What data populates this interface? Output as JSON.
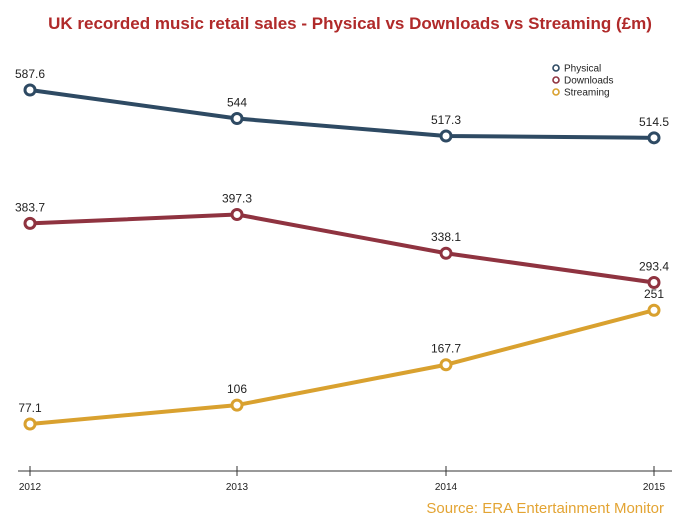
{
  "chart_data": {
    "type": "line",
    "title": "UK recorded music retail sales - Physical vs Downloads vs Streaming (£m)",
    "x": [
      "2012",
      "2013",
      "2014",
      "2015"
    ],
    "series": [
      {
        "name": "Physical",
        "color": "#2e4a63",
        "values": [
          587.6,
          544,
          517.3,
          514.5
        ],
        "labels": [
          "587.6",
          "544",
          "517.3",
          "514.5"
        ]
      },
      {
        "name": "Downloads",
        "color": "#8f3340",
        "values": [
          383.7,
          397.3,
          338.1,
          293.4
        ],
        "labels": [
          "383.7",
          "397.3",
          "338.1",
          "293.4"
        ]
      },
      {
        "name": "Streaming",
        "color": "#d9a12f",
        "values": [
          77.1,
          106,
          167.7,
          251
        ],
        "labels": [
          "77.1",
          "106",
          "167.7",
          "251"
        ]
      }
    ],
    "ylim": [
      0,
      620
    ],
    "grid": false,
    "legend_position": "top-right",
    "source": "Source: ERA Entertainment Monitor"
  }
}
